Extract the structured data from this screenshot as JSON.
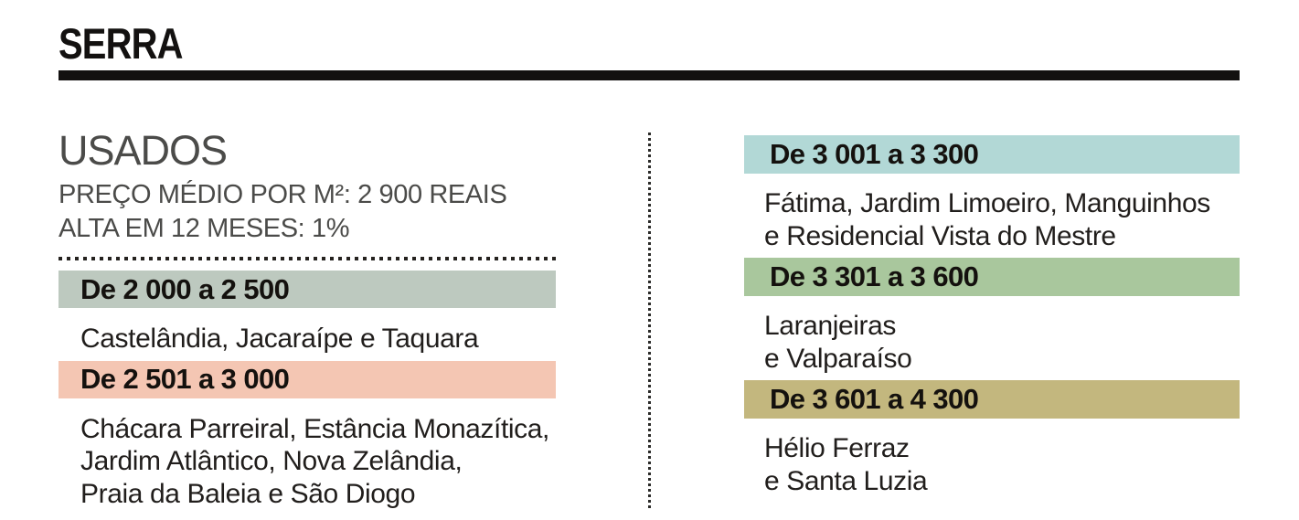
{
  "page": {
    "title": "SERRA",
    "background_color": "#ffffff",
    "rule_color": "#131110"
  },
  "left_column": {
    "heading": "USADOS",
    "price_line": "PREÇO MÉDIO POR M²: 2 900 REAIS",
    "change_line": "ALTA EM 12 MESES: 1%",
    "bands": [
      {
        "label": "De 2 000 a 2 500",
        "color": "#bdc9bf",
        "neighborhoods": [
          "Castelândia, Jacaraípe e Taquara"
        ]
      },
      {
        "label": "De 2 501 a 3 000",
        "color": "#f4c6b3",
        "neighborhoods": [
          "Chácara Parreiral, Estância Monazítica,",
          "Jardim Atlântico, Nova Zelândia,",
          "Praia da Baleia e São Diogo"
        ]
      }
    ]
  },
  "right_column": {
    "bands": [
      {
        "label": "De 3 001 a 3 300",
        "color": "#b2d8d6",
        "neighborhoods": [
          "Fátima, Jardim Limoeiro, Manguinhos",
          "e Residencial Vista do Mestre"
        ]
      },
      {
        "label": "De 3 301 a 3 600",
        "color": "#a9c79d",
        "neighborhoods": [
          "Laranjeiras",
          "e Valparaíso"
        ]
      },
      {
        "label": "De 3 601 a 4 300",
        "color": "#c3b77e",
        "neighborhoods": [
          "Hélio Ferraz",
          "e Santa Luzia"
        ]
      }
    ]
  }
}
